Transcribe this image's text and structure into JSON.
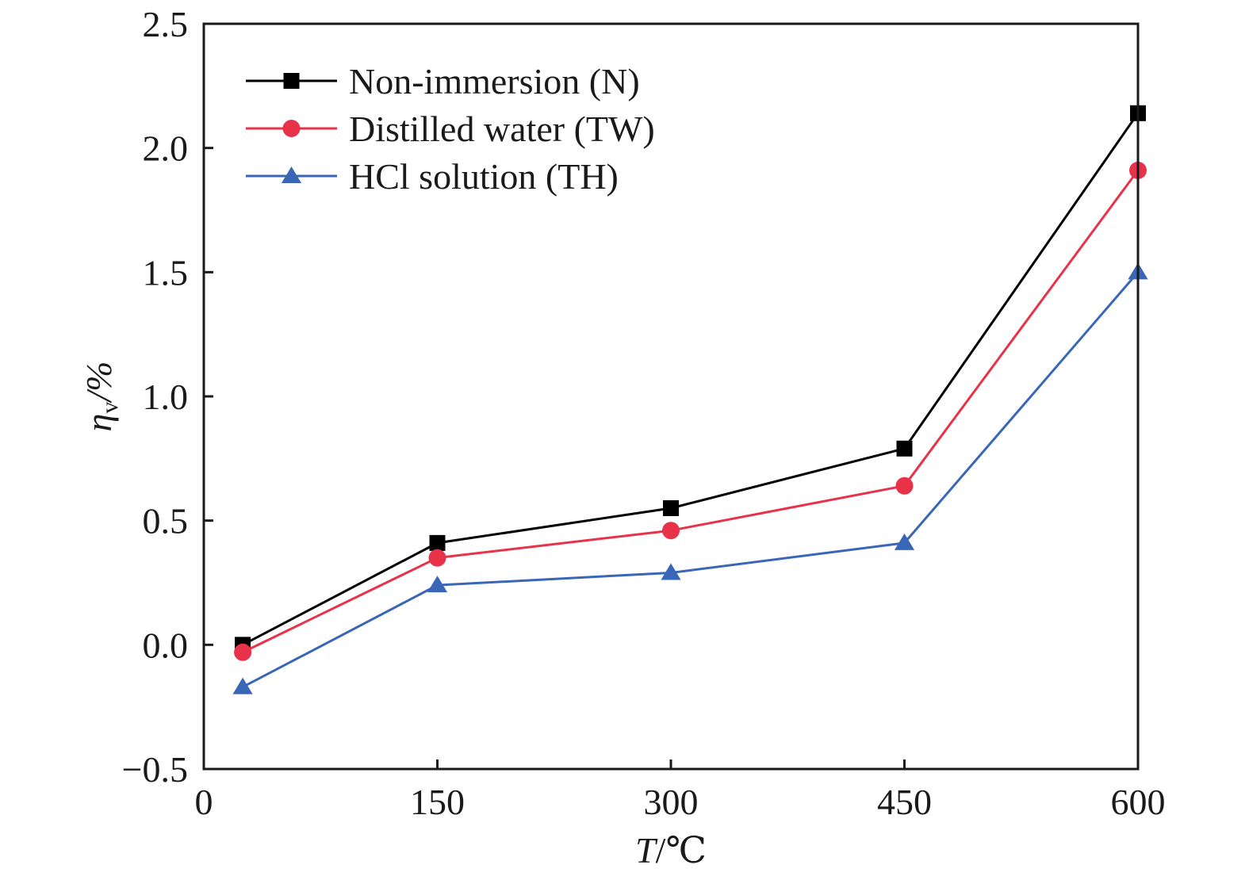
{
  "chart_data": {
    "type": "line",
    "xlabel": {
      "var": "T",
      "unit": "/℃"
    },
    "ylabel": {
      "var": "η",
      "sub": "v",
      "unit": "/%"
    },
    "xlim": [
      0,
      600
    ],
    "ylim": [
      -0.5,
      2.5
    ],
    "xticks": [
      0,
      150,
      300,
      450,
      600
    ],
    "xtick_labels": [
      "0",
      "150",
      "300",
      "450",
      "600"
    ],
    "yticks": [
      -0.5,
      0.0,
      0.5,
      1.0,
      1.5,
      2.0,
      2.5
    ],
    "ytick_labels": [
      "−0.5",
      "0.0",
      "0.5",
      "1.0",
      "1.5",
      "2.0",
      "2.5"
    ],
    "x": [
      25,
      150,
      300,
      450,
      600
    ],
    "grid": false,
    "legend_position": "top-left",
    "series": [
      {
        "name": "Non-immersion (N)",
        "color": "#000000",
        "marker": "square",
        "values": [
          0.0,
          0.41,
          0.55,
          0.79,
          2.14
        ]
      },
      {
        "name": "Distilled water (TW)",
        "color": "#e8324a",
        "marker": "circle",
        "values": [
          -0.03,
          0.35,
          0.46,
          0.64,
          1.91
        ]
      },
      {
        "name": "HCl solution (TH)",
        "color": "#3a66b8",
        "marker": "triangle",
        "values": [
          -0.17,
          0.24,
          0.29,
          0.41,
          1.5
        ]
      }
    ]
  }
}
